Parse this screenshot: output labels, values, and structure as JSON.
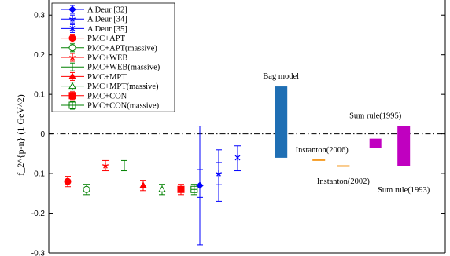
{
  "chart_data": {
    "type": "scatter",
    "title": "",
    "xlabel": "",
    "ylabel": "f_2^{p-n} (1 GeV^2)",
    "ylim": [
      -0.3,
      0.35
    ],
    "yticks": [
      -0.3,
      -0.2,
      -0.1,
      0,
      0.1,
      0.2,
      0.3
    ],
    "ytick_labels": [
      "-0.3",
      "-0.2",
      "-0.1",
      "0",
      "0.1",
      "0.2",
      "0.3"
    ],
    "xlim": [
      0,
      21
    ],
    "grid": false,
    "legend_placement": "top-left",
    "zero_line": {
      "y": 0,
      "style": "dash-dot"
    },
    "series": [
      {
        "name": "A Deur [32]",
        "color": "#0000ff",
        "marker": "diamond",
        "x": 8,
        "y": -0.13,
        "ylow": -0.28,
        "yhigh": 0.02,
        "inner_low": -0.16,
        "inner_high": -0.09
      },
      {
        "name": "A Deur [34]",
        "color": "#0000ff",
        "marker": "star",
        "x": 9,
        "y": -0.1,
        "ylow": -0.17,
        "yhigh": -0.04,
        "inner_low": -0.128,
        "inner_high": -0.072
      },
      {
        "name": "A Deur [35]",
        "color": "#0000ff",
        "marker": "x-star",
        "x": 10,
        "y": -0.06,
        "ylow": -0.093,
        "yhigh": -0.03
      },
      {
        "name": "PMC+APT",
        "color": "#ff0000",
        "marker": "circle-filled",
        "x": 1,
        "y": -0.12,
        "ylow": -0.133,
        "yhigh": -0.107
      },
      {
        "name": "PMC+APT(massive)",
        "color": "#008000",
        "marker": "circle-open",
        "x": 2,
        "y": -0.14,
        "ylow": -0.153,
        "yhigh": -0.127
      },
      {
        "name": "PMC+WEB",
        "color": "#ff0000",
        "marker": "star",
        "x": 3,
        "y": -0.08,
        "ylow": -0.093,
        "yhigh": -0.067
      },
      {
        "name": "PMC+WEB(massive)",
        "color": "#008000",
        "marker": "none",
        "x": 4,
        "y": -0.08,
        "ylow": -0.093,
        "yhigh": -0.067
      },
      {
        "name": "PMC+MPT",
        "color": "#ff0000",
        "marker": "triangle-filled",
        "x": 5,
        "y": -0.13,
        "ylow": -0.143,
        "yhigh": -0.117
      },
      {
        "name": "PMC+MPT(massive)",
        "color": "#008000",
        "marker": "triangle-open",
        "x": 6,
        "y": -0.14,
        "ylow": -0.153,
        "yhigh": -0.127
      },
      {
        "name": "PMC+CON",
        "color": "#ff0000",
        "marker": "square-filled",
        "x": 7,
        "y": -0.14,
        "ylow": -0.153,
        "yhigh": -0.127
      },
      {
        "name": "PMC+CON(massive)",
        "color": "#008000",
        "marker": "square-open",
        "x": 7.7,
        "y": -0.14,
        "ylow": -0.153,
        "yhigh": -0.127
      }
    ],
    "ranges": [
      {
        "label": "Bag model",
        "color": "#1f6fb4",
        "x": 12.3,
        "ylow": -0.06,
        "yhigh": 0.12
      },
      {
        "label": "Instanton(2006)",
        "color": "#f59b23",
        "x": 14.3,
        "ylow": -0.067,
        "yhigh": -0.064
      },
      {
        "label": "Instanton(2002)",
        "color": "#f59b23",
        "x": 15.6,
        "ylow": -0.082,
        "yhigh": -0.079
      },
      {
        "label": "Sum rule(1995)",
        "color": "#c000c0",
        "x": 17.3,
        "ylow": -0.035,
        "yhigh": -0.012
      },
      {
        "label": "Sum rule(1993)",
        "color": "#c000c0",
        "x": 18.8,
        "ylow": -0.082,
        "yhigh": 0.02
      }
    ]
  }
}
